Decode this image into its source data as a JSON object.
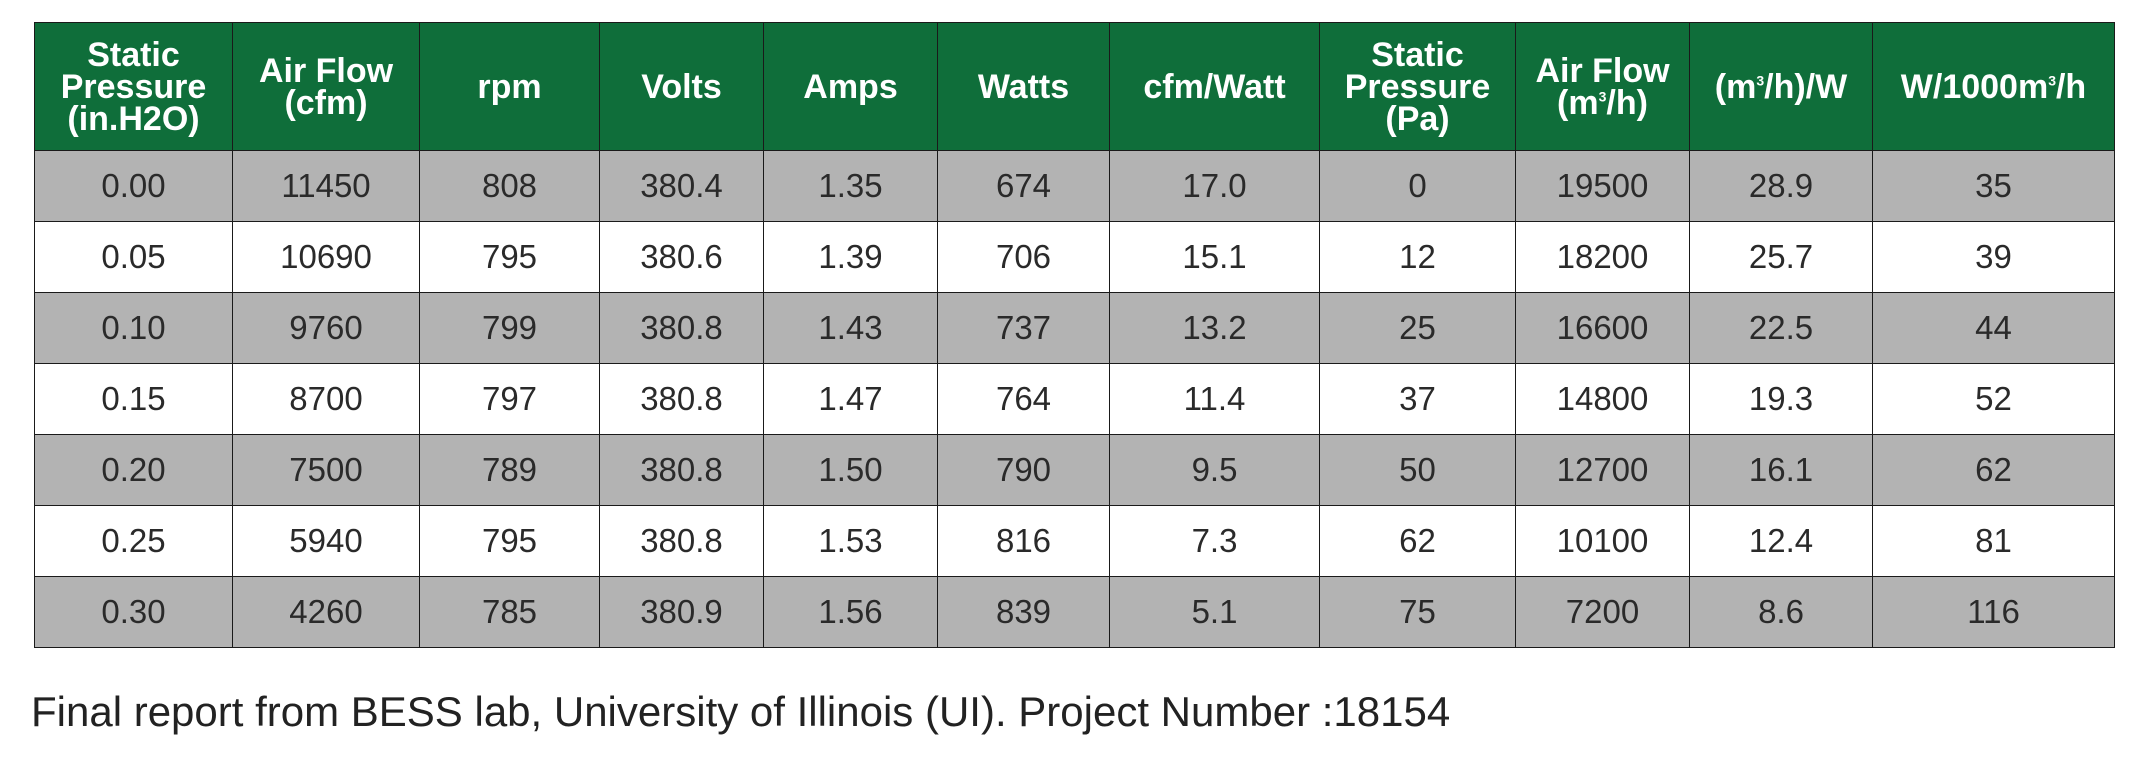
{
  "table": {
    "headers": [
      {
        "text": "Static\nPressure\n(in.H2O)"
      },
      {
        "text": "Air Flow\n(cfm)"
      },
      {
        "text": "rpm"
      },
      {
        "text": "Volts"
      },
      {
        "text": "Amps"
      },
      {
        "text": "Watts"
      },
      {
        "text": "cfm/Watt"
      },
      {
        "text": "Static\nPressure\n(Pa)"
      },
      {
        "pre": "Air Flow\n(m",
        "sup": "3",
        "post": "/h)"
      },
      {
        "pre": "(m",
        "sup": "3",
        "post": "/h)/W"
      },
      {
        "pre": "W/1000m",
        "sup": "3",
        "post": "/h"
      }
    ],
    "rows": [
      [
        "0.00",
        "11450",
        "808",
        "380.4",
        "1.35",
        "674",
        "17.0",
        "0",
        "19500",
        "28.9",
        "35"
      ],
      [
        "0.05",
        "10690",
        "795",
        "380.6",
        "1.39",
        "706",
        "15.1",
        "12",
        "18200",
        "25.7",
        "39"
      ],
      [
        "0.10",
        "9760",
        "799",
        "380.8",
        "1.43",
        "737",
        "13.2",
        "25",
        "16600",
        "22.5",
        "44"
      ],
      [
        "0.15",
        "8700",
        "797",
        "380.8",
        "1.47",
        "764",
        "11.4",
        "37",
        "14800",
        "19.3",
        "52"
      ],
      [
        "0.20",
        "7500",
        "789",
        "380.8",
        "1.50",
        "790",
        "9.5",
        "50",
        "12700",
        "16.1",
        "62"
      ],
      [
        "0.25",
        "5940",
        "795",
        "380.8",
        "1.53",
        "816",
        "7.3",
        "62",
        "10100",
        "12.4",
        "81"
      ],
      [
        "0.30",
        "4260",
        "785",
        "380.9",
        "1.56",
        "839",
        "5.1",
        "75",
        "7200",
        "8.6",
        "116"
      ]
    ]
  },
  "caption": "Final report from BESS lab, University of Illinois (UI). Project Number :18154"
}
